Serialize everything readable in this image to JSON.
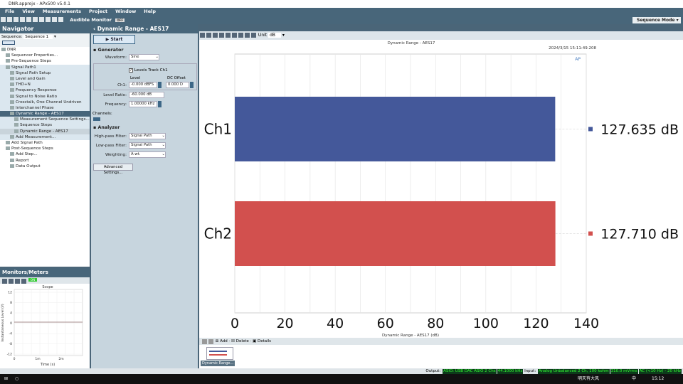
{
  "window": {
    "title": "DNR.approjx - APx500 v5.0.1"
  },
  "menu": [
    "File",
    "View",
    "Measurements",
    "Project",
    "Window",
    "Help"
  ],
  "toolbar": {
    "audible_monitor": "Audible Monitor",
    "monitor_state": "OFF",
    "mode": "Sequence Mode"
  },
  "navigator": {
    "title": "Navigator",
    "sequence_label": "Sequence:",
    "sequence_value": "Sequence 1",
    "tree": [
      {
        "label": "DNR",
        "indent": 0,
        "style": ""
      },
      {
        "label": "Sequencer Properties...",
        "indent": 1,
        "style": ""
      },
      {
        "label": "Pre-Sequence Steps",
        "indent": 1,
        "style": ""
      },
      {
        "label": "Signal Path1",
        "indent": 1,
        "style": "lb"
      },
      {
        "label": "Signal Path Setup",
        "indent": 2,
        "style": "lb"
      },
      {
        "label": "Level and Gain",
        "indent": 2,
        "style": "lb"
      },
      {
        "label": "THD+N",
        "indent": 2,
        "style": "lb"
      },
      {
        "label": "Frequency Response",
        "indent": 2,
        "style": "lb"
      },
      {
        "label": "Signal to Noise Ratio",
        "indent": 2,
        "style": "lb"
      },
      {
        "label": "Crosstalk, One Channel Undriven",
        "indent": 2,
        "style": "lb"
      },
      {
        "label": "Interchannel Phase",
        "indent": 2,
        "style": "lb"
      },
      {
        "label": "Dynamic Range - AES17",
        "indent": 2,
        "style": "sel"
      },
      {
        "label": "Measurement Sequence Settings...",
        "indent": 3,
        "style": "lb"
      },
      {
        "label": "Sequence Steps",
        "indent": 3,
        "style": "lb"
      },
      {
        "label": "Dynamic Range - AES17",
        "indent": 3,
        "style": "gr"
      },
      {
        "label": "Add Measurement...",
        "indent": 2,
        "style": "lb"
      },
      {
        "label": "Add Signal Path",
        "indent": 1,
        "style": ""
      },
      {
        "label": "Post-Sequence Steps",
        "indent": 1,
        "style": ""
      },
      {
        "label": "Add Step...",
        "indent": 2,
        "style": ""
      },
      {
        "label": "Report",
        "indent": 2,
        "style": ""
      },
      {
        "label": "Data Output",
        "indent": 2,
        "style": ""
      }
    ]
  },
  "monitors": {
    "title": "Monitors/Meters",
    "on_label": "ON",
    "scope_title": "Scope",
    "ylabel": "Instantaneous Level (V)",
    "xlabel": "Time (s)",
    "yticks": [
      "12",
      "8",
      "4",
      "0",
      "-4",
      "-8",
      "-12"
    ],
    "xticks": [
      "0",
      "1m",
      "2m"
    ]
  },
  "measurement": {
    "title": "Dynamic Range - AES17",
    "start": "Start",
    "generator": {
      "title": "Generator",
      "waveform_label": "Waveform:",
      "waveform": "Sine",
      "levels_track": "Levels Track Ch1",
      "level_hdr": "Level",
      "dc_hdr": "DC Offset",
      "ch1_label": "Ch1:",
      "ch1_level": "-0.000 dBFS",
      "ch1_dc": "0.000 D",
      "ratio_label": "Level Ratio:",
      "ratio": "-60.000 dB",
      "freq_label": "Frequency:",
      "freq": "1.00000 kHz",
      "channels_label": "Channels:"
    },
    "analyzer": {
      "title": "Analyzer",
      "hp_label": "High-pass Filter:",
      "hp": "Signal Path",
      "lp_label": "Low-pass Filter:",
      "lp": "Signal Path",
      "weight_label": "Weighting:",
      "weight": "A-wt."
    },
    "advanced": "Advanced Settings..."
  },
  "chart_toolbar": {
    "unit_label": "Unit",
    "unit": "dB"
  },
  "chart_data": {
    "type": "bar",
    "orientation": "horizontal",
    "title": "Dynamic Range - AES17",
    "timestamp": "2024/3/15 15:11:49.208",
    "xlabel": "Dynamic Range - AES17 (dB)",
    "categories": [
      "Ch1",
      "Ch2"
    ],
    "values": [
      127.635,
      127.71
    ],
    "value_labels": [
      "127.635 dB",
      "127.710 dB"
    ],
    "colors": [
      "#44589a",
      "#d2504e"
    ],
    "xlim": [
      0,
      140
    ],
    "xticks": [
      "0",
      "20",
      "40",
      "60",
      "80",
      "100",
      "120",
      "140"
    ],
    "grid": true
  },
  "bottom": {
    "add": "Add",
    "delete": "Delete",
    "details": "Details",
    "thumb": "Dynamic Range..."
  },
  "status": {
    "output_label": "Output:",
    "output": [
      "ASIO: USB DAC ASIO 2 Chs",
      "44.1000 kHz"
    ],
    "input_label": "Input:",
    "input": [
      "Analog Unbalanced 2 Ch, 100 kohm",
      "310.0 mVrms",
      "AC (<10 Hz) - 20 kHz"
    ]
  },
  "taskbar": {
    "weather": "明天有大风",
    "ime": "中",
    "time": "15:12"
  }
}
